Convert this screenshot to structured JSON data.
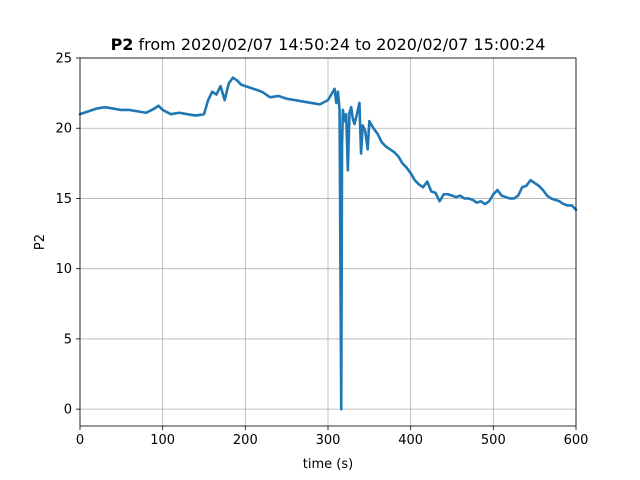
{
  "chart_data": {
    "type": "line",
    "title_bold": "P2",
    "title_rest": " from 2020/02/07 14:50:24 to 2020/02/07 15:00:24",
    "xlabel": "time (s)",
    "ylabel": "P2",
    "xlim": [
      0,
      600
    ],
    "ylim": [
      -1.2,
      25
    ],
    "xticks": [
      "0",
      "100",
      "200",
      "300",
      "400",
      "500",
      "600"
    ],
    "yticks": [
      "0",
      "5",
      "10",
      "15",
      "20",
      "25"
    ],
    "grid": true,
    "line_color": "#1f77b4",
    "series": [
      {
        "x": [
          0,
          10,
          20,
          30,
          40,
          50,
          60,
          70,
          80,
          90,
          95,
          100,
          110,
          120,
          130,
          140,
          150,
          155,
          160,
          165,
          170,
          175,
          180,
          185,
          190,
          195,
          200,
          210,
          220,
          230,
          240,
          250,
          260,
          270,
          280,
          290,
          300,
          305,
          308,
          310,
          312,
          314,
          316,
          317,
          318,
          320,
          322,
          324,
          326,
          328,
          330,
          332,
          335,
          338,
          340,
          342,
          345,
          348,
          350,
          355,
          360,
          365,
          370,
          375,
          380,
          385,
          390,
          395,
          400,
          405,
          410,
          415,
          420,
          425,
          430,
          435,
          440,
          445,
          450,
          455,
          460,
          465,
          470,
          475,
          480,
          485,
          490,
          495,
          500,
          505,
          510,
          515,
          520,
          525,
          530,
          535,
          540,
          545,
          550,
          555,
          560,
          565,
          570,
          575,
          580,
          585,
          590,
          595,
          600
        ],
        "y": [
          21.0,
          21.2,
          21.4,
          21.5,
          21.4,
          21.3,
          21.3,
          21.2,
          21.1,
          21.4,
          21.6,
          21.3,
          21.0,
          21.1,
          21.0,
          20.9,
          21.0,
          22.0,
          22.6,
          22.4,
          23.0,
          22.0,
          23.2,
          23.6,
          23.4,
          23.1,
          23.0,
          22.8,
          22.6,
          22.2,
          22.3,
          22.1,
          22.0,
          21.9,
          21.8,
          21.7,
          22.0,
          22.5,
          22.8,
          21.8,
          22.6,
          21.3,
          0.0,
          18.8,
          21.3,
          20.5,
          21.0,
          17.0,
          21.1,
          21.5,
          20.7,
          20.3,
          21.0,
          21.8,
          18.2,
          20.2,
          19.8,
          18.5,
          20.5,
          20.0,
          19.6,
          19.0,
          18.7,
          18.5,
          18.3,
          18.0,
          17.5,
          17.2,
          16.8,
          16.3,
          16.0,
          15.8,
          16.2,
          15.5,
          15.4,
          14.8,
          15.3,
          15.3,
          15.2,
          15.1,
          15.2,
          15.0,
          15.0,
          14.9,
          14.7,
          14.8,
          14.6,
          14.8,
          15.3,
          15.6,
          15.2,
          15.1,
          15.0,
          15.0,
          15.2,
          15.8,
          15.9,
          16.3,
          16.1,
          15.9,
          15.6,
          15.2,
          15.0,
          14.9,
          14.8,
          14.6,
          14.5,
          14.5,
          14.2
        ]
      }
    ]
  }
}
